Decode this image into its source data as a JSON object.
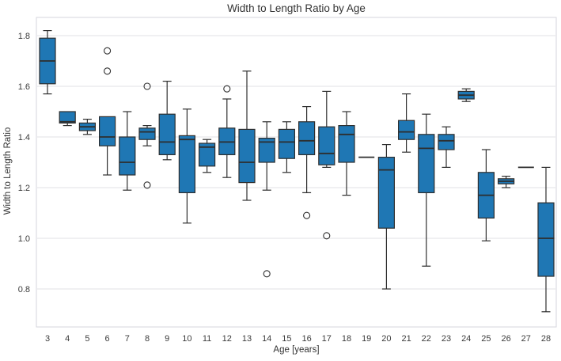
{
  "chart_data": {
    "type": "boxplot",
    "title": "Width to Length Ratio by Age",
    "xlabel": "Age [years]",
    "ylabel": "Width to Length Ratio",
    "x_categories": [
      3,
      4,
      5,
      6,
      7,
      8,
      9,
      10,
      11,
      12,
      13,
      14,
      15,
      16,
      17,
      18,
      19,
      20,
      21,
      22,
      23,
      24,
      25,
      26,
      27,
      28
    ],
    "yticks": [
      0.8,
      1.0,
      1.2,
      1.4,
      1.6,
      1.8
    ],
    "ytick_labels": [
      "0.8",
      "1.0",
      "1.2",
      "1.4",
      "1.6",
      "1.8"
    ],
    "ylim": [
      0.65,
      1.87
    ],
    "grid": "horizontal",
    "legend": "none",
    "series": [
      {
        "age": 3,
        "whislo": 1.57,
        "q1": 1.61,
        "med": 1.7,
        "q3": 1.79,
        "whishi": 1.82,
        "fliers": []
      },
      {
        "age": 4,
        "whislo": 1.445,
        "q1": 1.455,
        "med": 1.46,
        "q3": 1.5,
        "whishi": 1.5,
        "fliers": []
      },
      {
        "age": 5,
        "whislo": 1.41,
        "q1": 1.425,
        "med": 1.44,
        "q3": 1.455,
        "whishi": 1.47,
        "fliers": []
      },
      {
        "age": 6,
        "whislo": 1.25,
        "q1": 1.365,
        "med": 1.4,
        "q3": 1.48,
        "whishi": 1.48,
        "fliers": [
          1.74,
          1.66
        ]
      },
      {
        "age": 7,
        "whislo": 1.19,
        "q1": 1.25,
        "med": 1.3,
        "q3": 1.4,
        "whishi": 1.5,
        "fliers": []
      },
      {
        "age": 8,
        "whislo": 1.365,
        "q1": 1.39,
        "med": 1.42,
        "q3": 1.435,
        "whishi": 1.445,
        "fliers": [
          1.6,
          1.21
        ]
      },
      {
        "age": 9,
        "whislo": 1.31,
        "q1": 1.33,
        "med": 1.38,
        "q3": 1.49,
        "whishi": 1.62,
        "fliers": []
      },
      {
        "age": 10,
        "whislo": 1.06,
        "q1": 1.18,
        "med": 1.39,
        "q3": 1.405,
        "whishi": 1.51,
        "fliers": []
      },
      {
        "age": 11,
        "whislo": 1.26,
        "q1": 1.285,
        "med": 1.36,
        "q3": 1.375,
        "whishi": 1.39,
        "fliers": []
      },
      {
        "age": 12,
        "whislo": 1.24,
        "q1": 1.33,
        "med": 1.38,
        "q3": 1.435,
        "whishi": 1.55,
        "fliers": [
          1.59
        ]
      },
      {
        "age": 13,
        "whislo": 1.15,
        "q1": 1.22,
        "med": 1.3,
        "q3": 1.43,
        "whishi": 1.66,
        "fliers": []
      },
      {
        "age": 14,
        "whislo": 1.19,
        "q1": 1.3,
        "med": 1.38,
        "q3": 1.395,
        "whishi": 1.46,
        "fliers": [
          0.86
        ]
      },
      {
        "age": 15,
        "whislo": 1.26,
        "q1": 1.315,
        "med": 1.38,
        "q3": 1.43,
        "whishi": 1.46,
        "fliers": []
      },
      {
        "age": 16,
        "whislo": 1.18,
        "q1": 1.33,
        "med": 1.385,
        "q3": 1.46,
        "whishi": 1.52,
        "fliers": [
          1.09
        ]
      },
      {
        "age": 17,
        "whislo": 1.28,
        "q1": 1.29,
        "med": 1.335,
        "q3": 1.44,
        "whishi": 1.58,
        "fliers": [
          1.01
        ]
      },
      {
        "age": 18,
        "whislo": 1.17,
        "q1": 1.3,
        "med": 1.41,
        "q3": 1.445,
        "whishi": 1.5,
        "fliers": []
      },
      {
        "age": 19,
        "whislo": 1.32,
        "q1": 1.32,
        "med": 1.32,
        "q3": 1.32,
        "whishi": 1.32,
        "fliers": []
      },
      {
        "age": 20,
        "whislo": 0.8,
        "q1": 1.04,
        "med": 1.27,
        "q3": 1.32,
        "whishi": 1.37,
        "fliers": []
      },
      {
        "age": 21,
        "whislo": 1.34,
        "q1": 1.39,
        "med": 1.42,
        "q3": 1.465,
        "whishi": 1.57,
        "fliers": []
      },
      {
        "age": 22,
        "whislo": 0.89,
        "q1": 1.18,
        "med": 1.355,
        "q3": 1.41,
        "whishi": 1.49,
        "fliers": []
      },
      {
        "age": 23,
        "whislo": 1.28,
        "q1": 1.35,
        "med": 1.385,
        "q3": 1.41,
        "whishi": 1.44,
        "fliers": []
      },
      {
        "age": 24,
        "whislo": 1.54,
        "q1": 1.55,
        "med": 1.565,
        "q3": 1.58,
        "whishi": 1.59,
        "fliers": []
      },
      {
        "age": 25,
        "whislo": 0.99,
        "q1": 1.08,
        "med": 1.17,
        "q3": 1.26,
        "whishi": 1.35,
        "fliers": []
      },
      {
        "age": 26,
        "whislo": 1.2,
        "q1": 1.215,
        "med": 1.225,
        "q3": 1.235,
        "whishi": 1.245,
        "fliers": []
      },
      {
        "age": 27,
        "whislo": 1.28,
        "q1": 1.28,
        "med": 1.28,
        "q3": 1.28,
        "whishi": 1.28,
        "fliers": []
      },
      {
        "age": 28,
        "whislo": 0.71,
        "q1": 0.85,
        "med": 1.0,
        "q3": 1.14,
        "whishi": 1.28,
        "fliers": []
      }
    ]
  },
  "colors": {
    "box_fill": "#1f77b4",
    "box_edge": "#2e2e2e",
    "median": "#2e2e2e",
    "grid": "#e1e1e6",
    "axis_border": "#d6d6dc",
    "text": "#3b3b3b",
    "background": "#ffffff"
  }
}
